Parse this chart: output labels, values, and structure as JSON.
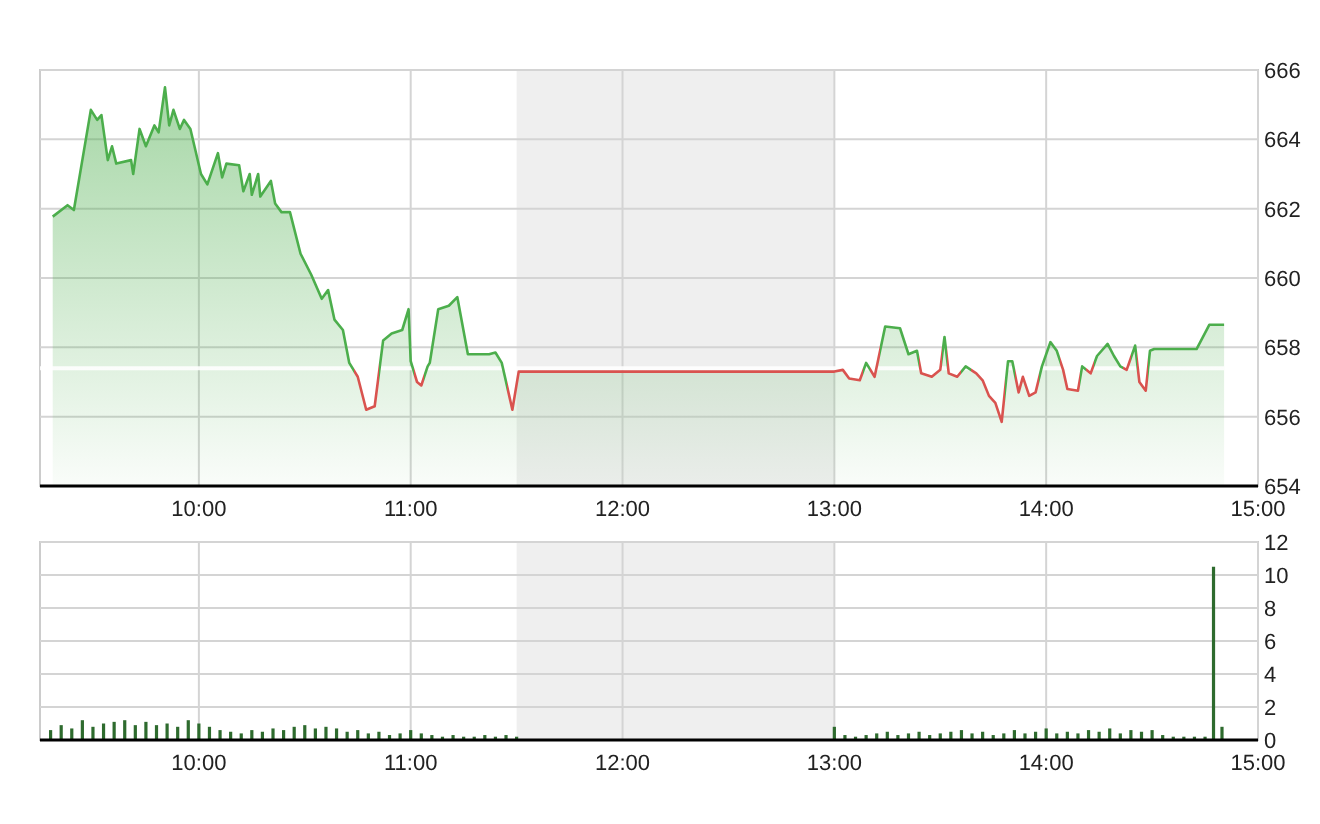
{
  "chart_data": [
    {
      "type": "area",
      "xlim": [
        9.25,
        15
      ],
      "xticks": [
        {
          "value": 10,
          "label": "10:00"
        },
        {
          "value": 11,
          "label": "11:00"
        },
        {
          "value": 12,
          "label": "12:00"
        },
        {
          "value": 13,
          "label": "13:00"
        },
        {
          "value": 14,
          "label": "14:00"
        },
        {
          "value": 15,
          "label": "15:00"
        }
      ],
      "ylim": [
        654,
        666
      ],
      "yticks": [
        654,
        656,
        658,
        660,
        662,
        664,
        666
      ],
      "grid": true,
      "bands": [
        {
          "axis": "x",
          "from": 11.5,
          "to": 13,
          "color": "#efefef"
        }
      ],
      "ref_lines": [
        {
          "axis": "y",
          "value": 657.4,
          "color": "#ffffff"
        }
      ],
      "series": [
        {
          "color": "#4cae4c",
          "x": [
            9.31,
            9.38,
            9.41,
            9.49,
            9.52,
            9.54,
            9.57,
            9.59,
            9.61,
            9.68,
            9.69,
            9.72,
            9.75,
            9.79,
            9.81,
            9.84,
            9.86,
            9.88,
            9.91,
            9.93,
            9.96,
            10.01,
            10.04,
            10.09,
            10.11,
            10.13,
            10.19,
            10.21,
            10.24,
            10.25,
            10.28,
            10.29,
            10.34,
            10.36,
            10.39,
            10.43,
            10.48,
            10.53,
            10.58,
            10.61,
            10.64,
            10.68,
            10.71,
            10.75,
            10.79,
            10.83,
            10.87,
            10.91,
            10.96,
            10.99,
            11.0,
            11.03,
            11.05,
            11.08,
            11.09,
            11.13,
            11.18,
            11.22,
            11.27,
            11.37,
            11.4,
            11.43,
            11.48,
            11.51,
            13.0,
            13.04,
            13.07,
            13.12,
            13.15,
            13.19,
            13.24,
            13.31,
            13.35,
            13.39,
            13.41,
            13.46,
            13.5,
            13.52,
            13.54,
            13.58,
            13.62,
            13.67,
            13.7,
            13.73,
            13.76,
            13.79,
            13.82,
            13.84,
            13.87,
            13.89,
            13.92,
            13.95,
            13.98,
            14.02,
            14.05,
            14.08,
            14.1,
            14.15,
            14.17,
            14.21,
            14.24,
            14.29,
            14.32,
            14.35,
            14.38,
            14.42,
            14.44,
            14.47,
            14.49,
            14.51,
            14.71,
            14.77,
            14.84
          ],
          "values": [
            661.77,
            662.1,
            661.96,
            664.85,
            664.56,
            664.7,
            663.4,
            663.8,
            663.3,
            663.4,
            663.0,
            664.3,
            663.8,
            664.4,
            664.2,
            665.5,
            664.4,
            664.85,
            664.3,
            664.56,
            664.3,
            663.0,
            662.7,
            663.6,
            662.9,
            663.3,
            663.25,
            662.5,
            663.0,
            662.4,
            663.0,
            662.35,
            662.8,
            662.15,
            661.9,
            661.9,
            660.7,
            660.1,
            659.4,
            659.65,
            658.8,
            658.5,
            657.55,
            657.15,
            656.2,
            656.3,
            658.2,
            658.4,
            658.5,
            659.1,
            657.6,
            657.0,
            656.9,
            657.45,
            657.55,
            659.1,
            659.2,
            659.45,
            657.8,
            657.8,
            657.85,
            657.55,
            656.2,
            657.3,
            657.3,
            657.35,
            657.1,
            657.05,
            657.55,
            657.15,
            658.6,
            658.55,
            657.8,
            657.9,
            657.25,
            657.15,
            657.35,
            658.3,
            657.25,
            657.15,
            657.45,
            657.25,
            657.05,
            656.6,
            656.4,
            655.85,
            657.6,
            657.6,
            656.7,
            657.15,
            656.6,
            656.7,
            657.45,
            658.15,
            657.9,
            657.35,
            656.8,
            656.75,
            657.45,
            657.25,
            657.75,
            658.1,
            657.75,
            657.45,
            657.35,
            658.05,
            657.0,
            656.75,
            657.9,
            657.95,
            657.95,
            658.65,
            658.65
          ],
          "colors": [
            "#4cae4c",
            "#4cae4c",
            "#4cae4c",
            "#4cae4c",
            "#4cae4c",
            "#4cae4c",
            "#4cae4c",
            "#4cae4c",
            "#4cae4c",
            "#4cae4c",
            "#4cae4c",
            "#4cae4c",
            "#4cae4c",
            "#4cae4c",
            "#4cae4c",
            "#4cae4c",
            "#4cae4c",
            "#4cae4c",
            "#4cae4c",
            "#4cae4c",
            "#4cae4c",
            "#4cae4c",
            "#4cae4c",
            "#4cae4c",
            "#4cae4c",
            "#4cae4c",
            "#4cae4c",
            "#4cae4c",
            "#4cae4c",
            "#4cae4c",
            "#4cae4c",
            "#4cae4c",
            "#4cae4c",
            "#4cae4c",
            "#4cae4c",
            "#4cae4c",
            "#4cae4c",
            "#4cae4c",
            "#4cae4c",
            "#4cae4c",
            "#4cae4c",
            "#4cae4c",
            "#4cae4c",
            "#d9534f",
            "#d9534f",
            "#d9534f",
            "#4cae4c",
            "#4cae4c",
            "#4cae4c",
            "#4cae4c",
            "#4cae4c",
            "#d9534f",
            "#d9534f",
            "#4cae4c",
            "#4cae4c",
            "#4cae4c",
            "#4cae4c",
            "#4cae4c",
            "#4cae4c",
            "#4cae4c",
            "#4cae4c",
            "#4cae4c",
            "#d9534f",
            "#d9534f",
            "#d9534f",
            "#d9534f",
            "#d9534f",
            "#d9534f",
            "#4cae4c",
            "#d9534f",
            "#4cae4c",
            "#4cae4c",
            "#4cae4c",
            "#4cae4c",
            "#d9534f",
            "#d9534f",
            "#d9534f",
            "#4cae4c",
            "#d9534f",
            "#d9534f",
            "#4cae4c",
            "#d9534f",
            "#d9534f",
            "#d9534f",
            "#d9534f",
            "#d9534f",
            "#4cae4c",
            "#4cae4c",
            "#d9534f",
            "#d9534f",
            "#d9534f",
            "#d9534f",
            "#4cae4c",
            "#4cae4c",
            "#4cae4c",
            "#d9534f",
            "#d9534f",
            "#d9534f",
            "#4cae4c",
            "#d9534f",
            "#4cae4c",
            "#4cae4c",
            "#4cae4c",
            "#4cae4c",
            "#d9534f",
            "#4cae4c",
            "#d9534f",
            "#d9534f",
            "#4cae4c",
            "#4cae4c",
            "#4cae4c",
            "#4cae4c",
            "#4cae4c"
          ]
        }
      ]
    },
    {
      "type": "bar",
      "xlim": [
        9.25,
        15
      ],
      "xticks": [
        {
          "value": 10,
          "label": "10:00"
        },
        {
          "value": 11,
          "label": "11:00"
        },
        {
          "value": 12,
          "label": "12:00"
        },
        {
          "value": 13,
          "label": "13:00"
        },
        {
          "value": 14,
          "label": "14:00"
        },
        {
          "value": 15,
          "label": "15:00"
        }
      ],
      "ylim": [
        0,
        12
      ],
      "yticks": [
        0,
        2,
        4,
        6,
        8,
        10,
        12
      ],
      "grid": true,
      "bands": [
        {
          "axis": "x",
          "from": 11.5,
          "to": 13,
          "color": "#efefef"
        }
      ],
      "series": [
        {
          "color": "#2e6b2e",
          "x": [
            9.3,
            9.35,
            9.4,
            9.45,
            9.5,
            9.55,
            9.6,
            9.65,
            9.7,
            9.75,
            9.8,
            9.85,
            9.9,
            9.95,
            10.0,
            10.05,
            10.1,
            10.15,
            10.2,
            10.25,
            10.3,
            10.35,
            10.4,
            10.45,
            10.5,
            10.55,
            10.6,
            10.65,
            10.7,
            10.75,
            10.8,
            10.85,
            10.9,
            10.95,
            11.0,
            11.05,
            11.1,
            11.15,
            11.2,
            11.25,
            11.3,
            11.35,
            11.4,
            11.45,
            11.5,
            13.0,
            13.05,
            13.1,
            13.15,
            13.2,
            13.25,
            13.3,
            13.35,
            13.4,
            13.45,
            13.5,
            13.55,
            13.6,
            13.65,
            13.7,
            13.75,
            13.8,
            13.85,
            13.9,
            13.95,
            14.0,
            14.05,
            14.1,
            14.15,
            14.2,
            14.25,
            14.3,
            14.35,
            14.4,
            14.45,
            14.5,
            14.55,
            14.6,
            14.65,
            14.7,
            14.75,
            14.79,
            14.83
          ],
          "values": [
            0.6,
            0.9,
            0.7,
            1.2,
            0.8,
            1.0,
            1.1,
            1.2,
            0.9,
            1.1,
            0.9,
            1.0,
            0.8,
            1.2,
            1.0,
            0.8,
            0.6,
            0.5,
            0.4,
            0.6,
            0.5,
            0.7,
            0.6,
            0.8,
            0.9,
            0.7,
            0.8,
            0.7,
            0.5,
            0.6,
            0.4,
            0.5,
            0.3,
            0.4,
            0.6,
            0.4,
            0.3,
            0.2,
            0.3,
            0.2,
            0.2,
            0.3,
            0.2,
            0.3,
            0.2,
            0.8,
            0.3,
            0.2,
            0.3,
            0.4,
            0.5,
            0.3,
            0.4,
            0.5,
            0.3,
            0.4,
            0.5,
            0.6,
            0.4,
            0.5,
            0.3,
            0.4,
            0.6,
            0.4,
            0.5,
            0.7,
            0.4,
            0.5,
            0.4,
            0.6,
            0.5,
            0.7,
            0.4,
            0.6,
            0.5,
            0.6,
            0.3,
            0.2,
            0.2,
            0.2,
            0.2,
            10.5,
            0.8
          ]
        }
      ]
    }
  ]
}
